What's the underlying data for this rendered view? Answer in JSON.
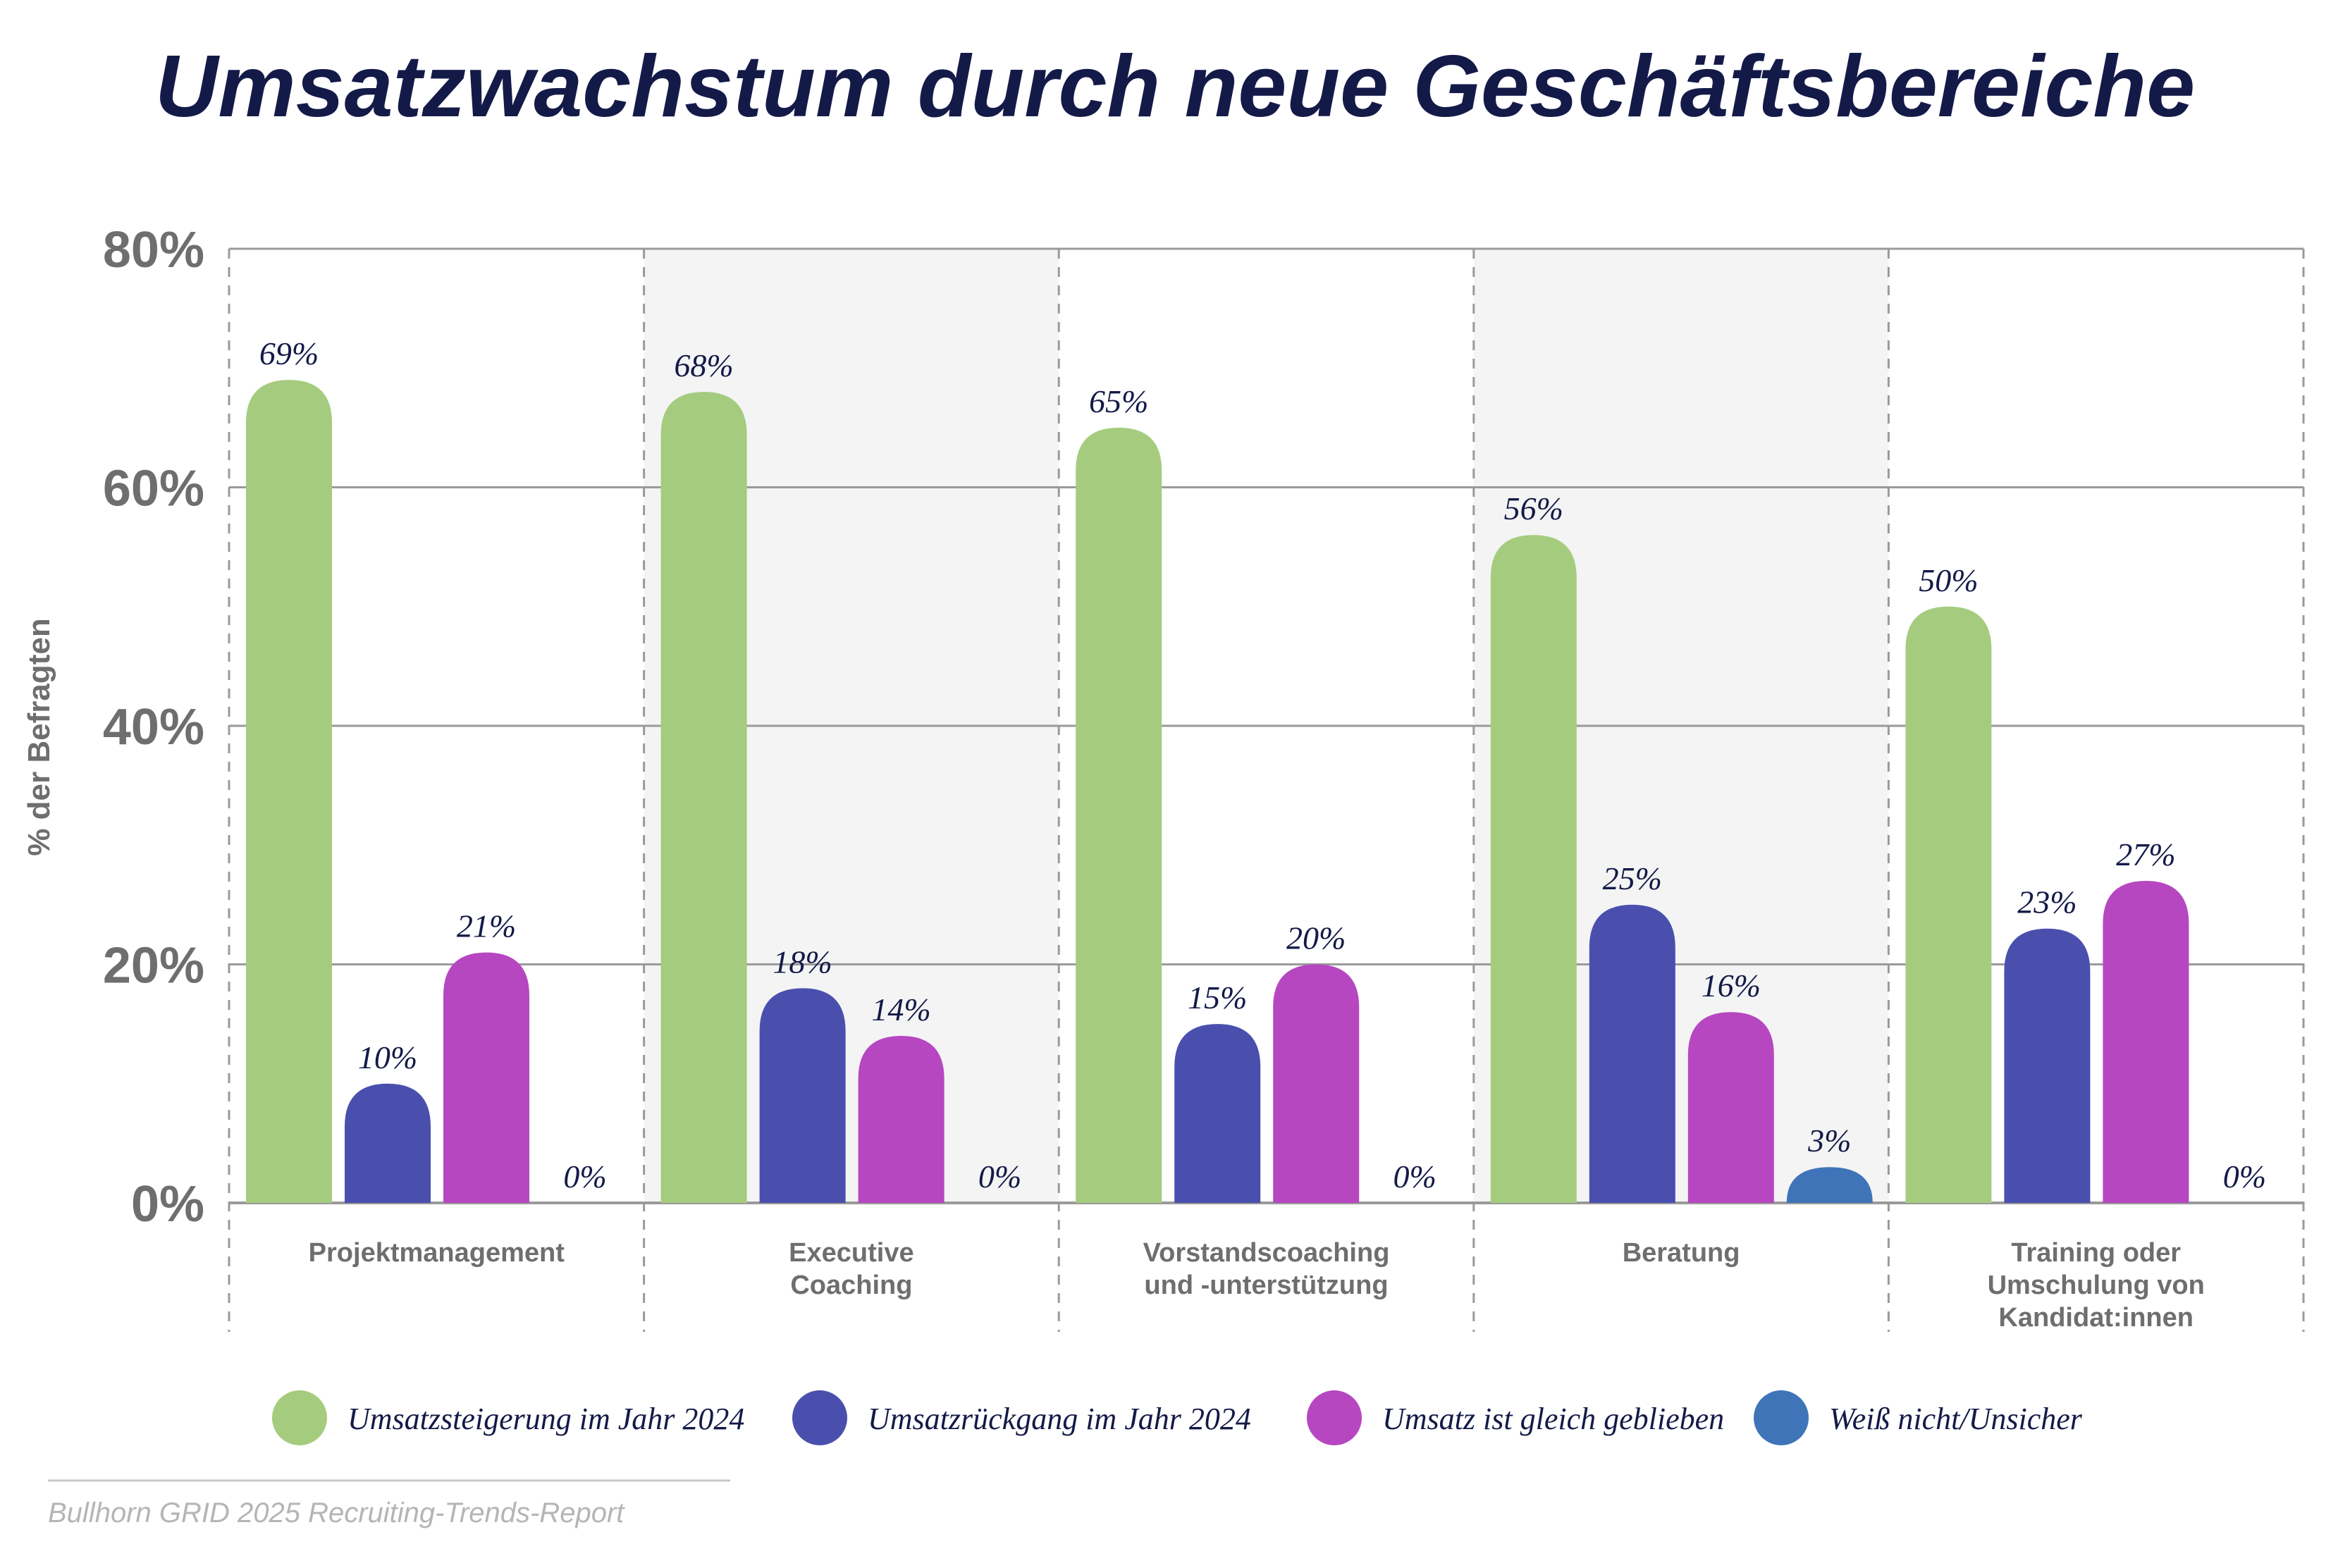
{
  "chart_data": {
    "type": "bar",
    "title": "Umsatzwachstum durch neue Geschäftsbereiche",
    "ylabel": "% der Befragten",
    "xlabel": "",
    "ylim": [
      0,
      80
    ],
    "yticks": [
      0,
      20,
      40,
      60,
      80
    ],
    "ytick_labels": [
      "0%",
      "20%",
      "40%",
      "60%",
      "80%"
    ],
    "grid": true,
    "legend_position": "bottom",
    "categories": [
      [
        "Projektmanagement"
      ],
      [
        "Executive",
        "Coaching"
      ],
      [
        "Vorstandscoaching",
        "und -unterstützung"
      ],
      [
        "Beratung"
      ],
      [
        "Training oder",
        "Umschulung von",
        "Kandidat:innen"
      ]
    ],
    "series": [
      {
        "name": "Umsatzsteigerung im Jahr 2024",
        "color": "#a5cc7e",
        "values": [
          69,
          68,
          65,
          56,
          50
        ],
        "labels": [
          "69%",
          "68%",
          "65%",
          "56%",
          "50%"
        ]
      },
      {
        "name": "Umsatzrückgang im Jahr 2024",
        "color": "#4a4fae",
        "values": [
          10,
          18,
          15,
          25,
          23
        ],
        "labels": [
          "10%",
          "18%",
          "15%",
          "25%",
          "23%"
        ]
      },
      {
        "name": "Umsatz ist gleich geblieben",
        "color": "#b647c1",
        "values": [
          21,
          14,
          20,
          16,
          27
        ],
        "labels": [
          "21%",
          "14%",
          "20%",
          "16%",
          "27%"
        ]
      },
      {
        "name": "Weiß nicht/Unsicher",
        "color": "#3f74b8",
        "values": [
          0,
          0,
          0,
          3,
          0
        ],
        "labels": [
          "0%",
          "0%",
          "0%",
          "3%",
          "0%"
        ]
      }
    ],
    "source": "Bullhorn GRID 2025 Recruiting-Trends-Report"
  },
  "colors": {
    "title": "#141a48",
    "data_label": "#141a48",
    "tick": "#6e6e6e",
    "category": "#6e6e6e",
    "grid": "#9a9a9a",
    "band": "#f4f4f4",
    "source": "#b5b5b5"
  }
}
